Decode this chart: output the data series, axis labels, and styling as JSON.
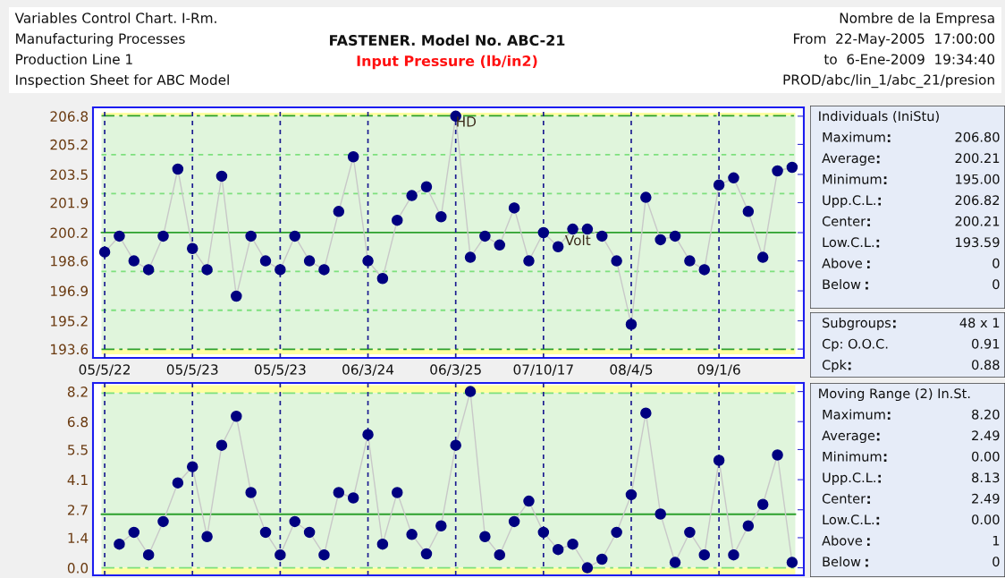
{
  "chart_data": [
    {
      "type": "other",
      "annotations": [
        "Variables Control Chart. I-Rm.",
        "Manufacturing Processes",
        "Production Line 1",
        "Inspection Sheet for ABC Model"
      ]
    },
    {
      "type": "other",
      "title": "FASTENER. Model No. ABC-21",
      "subtitle": "Input Pressure (lb/in2)",
      "color": "#ff1010"
    },
    {
      "type": "other",
      "annotations": [
        "Nombre de la Empresa",
        "From  22-May-2005  17:00:00",
        "to  6-Ene-2009  19:34:40",
        "PROD/abc/lin_1/abc_21/presion"
      ]
    },
    {
      "type": "line",
      "marker": "circle",
      "grid": "x",
      "tick_labels": "xy",
      "categories": [
        "05/5/22",
        null,
        null,
        null,
        null,
        null,
        "05/5/23",
        null,
        null,
        null,
        null,
        null,
        "05/5/23",
        null,
        null,
        null,
        null,
        null,
        "06/3/24",
        null,
        null,
        null,
        null,
        null,
        "06/3/25",
        null,
        null,
        null,
        null,
        null,
        "07/10/17",
        null,
        null,
        null,
        null,
        null,
        "08/4/5",
        null,
        null,
        null,
        null,
        null,
        "09/1/6",
        null,
        null,
        null,
        null,
        null
      ],
      "series": [
        {
          "color": "#000080",
          "values": [
            199.1,
            200.0,
            198.6,
            198.1,
            200.0,
            203.8,
            199.3,
            198.1,
            203.4,
            196.6,
            200.0,
            198.6,
            198.1,
            200.0,
            198.6,
            198.1,
            201.4,
            204.5,
            198.6,
            197.6,
            200.9,
            202.3,
            202.8,
            201.1,
            206.8,
            198.8,
            200.0,
            199.5,
            201.6,
            198.6,
            200.2,
            199.4,
            200.4,
            200.4,
            200.0,
            198.6,
            195.0,
            202.2,
            199.8,
            200.0,
            198.6,
            198.1,
            202.9,
            203.3,
            201.4,
            198.8,
            203.7,
            203.9
          ]
        }
      ],
      "ylim": [
        193.1,
        207.3
      ],
      "yticks": [
        193.6,
        195.2,
        196.9,
        198.6,
        200.2,
        201.9,
        203.5,
        205.2,
        206.8
      ],
      "bands": [
        {
          "axis": "y",
          "from": 206.82,
          "to": 207.0,
          "color": "#ffffa0"
        },
        {
          "axis": "y",
          "from": 193.59,
          "to": 206.82,
          "color": "#e0f5dc"
        },
        {
          "axis": "y",
          "from": 193.3,
          "to": 193.59,
          "color": "#ffffa0"
        }
      ],
      "ref_lines": [
        {
          "axis": "y",
          "value": 206.82,
          "color": "#2ca02c",
          "line_style": "dashed"
        },
        {
          "axis": "y",
          "value": 204.62,
          "color": "#7ee07e",
          "line_style": "dotted"
        },
        {
          "axis": "y",
          "value": 202.41,
          "color": "#7ee07e",
          "line_style": "dotted"
        },
        {
          "axis": "y",
          "value": 200.21,
          "color": "#2ca02c",
          "line_style": "solid"
        },
        {
          "axis": "y",
          "value": 198.0,
          "color": "#7ee07e",
          "line_style": "dotted"
        },
        {
          "axis": "y",
          "value": 195.8,
          "color": "#7ee07e",
          "line_style": "dotted"
        },
        {
          "axis": "y",
          "value": 193.59,
          "color": "#2ca02c",
          "line_style": "dashed"
        }
      ],
      "annotations": [
        {
          "text": "HD",
          "x": "06/3/25",
          "y": 206.8
        },
        "Volt"
      ]
    },
    {
      "type": "other",
      "title": "Individuals (IniStu)",
      "categories": [
        "Maximum",
        "Average",
        "Minimum",
        "Upp.C.L.",
        "Center",
        "Low.C.L.",
        "Above",
        "Below"
      ],
      "value_labels": [
        "206.80",
        "200.21",
        "195.00",
        "206.82",
        "200.21",
        "193.59",
        "0",
        "0"
      ]
    },
    {
      "type": "other",
      "categories": [
        "Subgroups",
        "Cp: O.O.C.",
        "Cpk"
      ],
      "value_labels": [
        "48 x 1",
        "0.91",
        "0.88"
      ]
    },
    {
      "type": "line",
      "marker": "circle",
      "grid": "x",
      "tick_labels": "y",
      "categories": [
        "05/5/22",
        null,
        null,
        null,
        null,
        null,
        "05/5/23",
        null,
        null,
        null,
        null,
        null,
        "05/5/23",
        null,
        null,
        null,
        null,
        null,
        "06/3/24",
        null,
        null,
        null,
        null,
        null,
        "06/3/25",
        null,
        null,
        null,
        null,
        null,
        "07/10/17",
        null,
        null,
        null,
        null,
        null,
        "08/4/5",
        null,
        null,
        null,
        null,
        null,
        "09/1/6",
        null,
        null,
        null,
        null,
        null
      ],
      "series": [
        {
          "color": "#000080",
          "values": [
            null,
            1.1,
            1.65,
            0.6,
            2.15,
            3.95,
            4.7,
            1.45,
            5.7,
            7.05,
            3.5,
            1.65,
            0.6,
            2.15,
            1.65,
            0.6,
            3.5,
            3.25,
            6.2,
            1.1,
            3.5,
            1.55,
            0.65,
            1.95,
            5.7,
            8.2,
            1.45,
            0.6,
            2.15,
            3.1,
            1.65,
            0.85,
            1.1,
            0.0,
            0.4,
            1.65,
            3.4,
            7.2,
            2.5,
            0.25,
            1.65,
            0.6,
            5.0,
            0.6,
            1.95,
            2.95,
            5.25,
            0.25
          ]
        }
      ],
      "ylim": [
        -0.35,
        8.6
      ],
      "yticks": [
        {
          "value": 0,
          "label": "0.0"
        },
        1.4,
        2.7,
        4.1,
        5.5,
        6.8,
        8.2
      ],
      "bands": [
        {
          "axis": "y",
          "from": 8.13,
          "to": 8.5,
          "color": "#ffffa0"
        },
        {
          "axis": "y",
          "from": 0.0,
          "to": 8.13,
          "color": "#e0f5dc"
        },
        {
          "axis": "y",
          "from": -0.3,
          "to": 0.0,
          "color": "#ffffa0"
        }
      ],
      "ref_lines": [
        {
          "axis": "y",
          "value": 8.13,
          "color": "#7ee07e",
          "line_style": "dashed"
        },
        {
          "axis": "y",
          "value": 2.49,
          "color": "#2ca02c",
          "line_style": "solid"
        },
        {
          "axis": "y",
          "value": 0.0,
          "color": "#7ee07e",
          "line_style": "dashed"
        }
      ]
    },
    {
      "type": "other",
      "title": "Moving Range (2) In.St.",
      "categories": [
        "Maximum",
        "Average",
        "Minimum",
        "Upp.C.L.",
        "Center",
        "Low.C.L.",
        "Above",
        "Below"
      ],
      "value_labels": [
        "8.20",
        "2.49",
        "0.00",
        "8.13",
        "2.49",
        "0.00",
        "1",
        "0"
      ]
    }
  ]
}
